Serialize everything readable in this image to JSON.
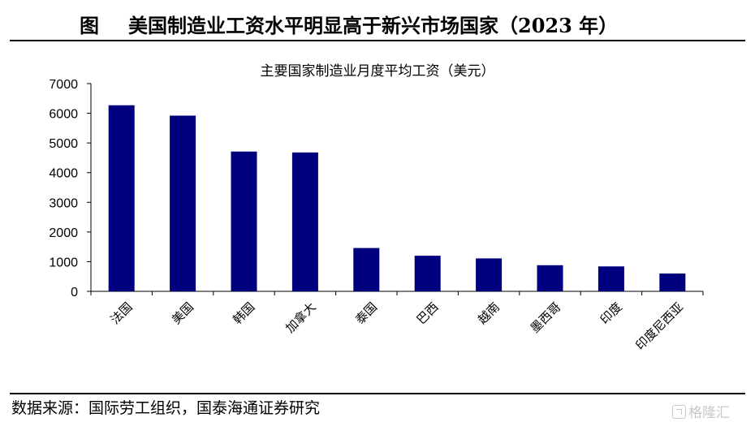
{
  "figure": {
    "label": "图",
    "title": "美国制造业工资水平明显高于新兴市场国家（2023 年）"
  },
  "source": "数据来源：国际劳工组织，国泰海通证券研究",
  "watermark": "格隆汇",
  "chart_data": {
    "type": "bar",
    "title": "主要国家制造业月度平均工资（美元）",
    "xlabel": "",
    "ylabel": "",
    "categories": [
      "法国",
      "美国",
      "韩国",
      "加拿大",
      "泰国",
      "巴西",
      "越南",
      "墨西哥",
      "印度",
      "印度尼西亚"
    ],
    "values": [
      6270,
      5920,
      4710,
      4680,
      1460,
      1200,
      1110,
      880,
      840,
      600
    ],
    "ylim": [
      0,
      7000
    ],
    "yticks": [
      0,
      1000,
      2000,
      3000,
      4000,
      5000,
      6000,
      7000
    ],
    "bar_color": "#00007f",
    "grid": false,
    "legend": "none"
  }
}
